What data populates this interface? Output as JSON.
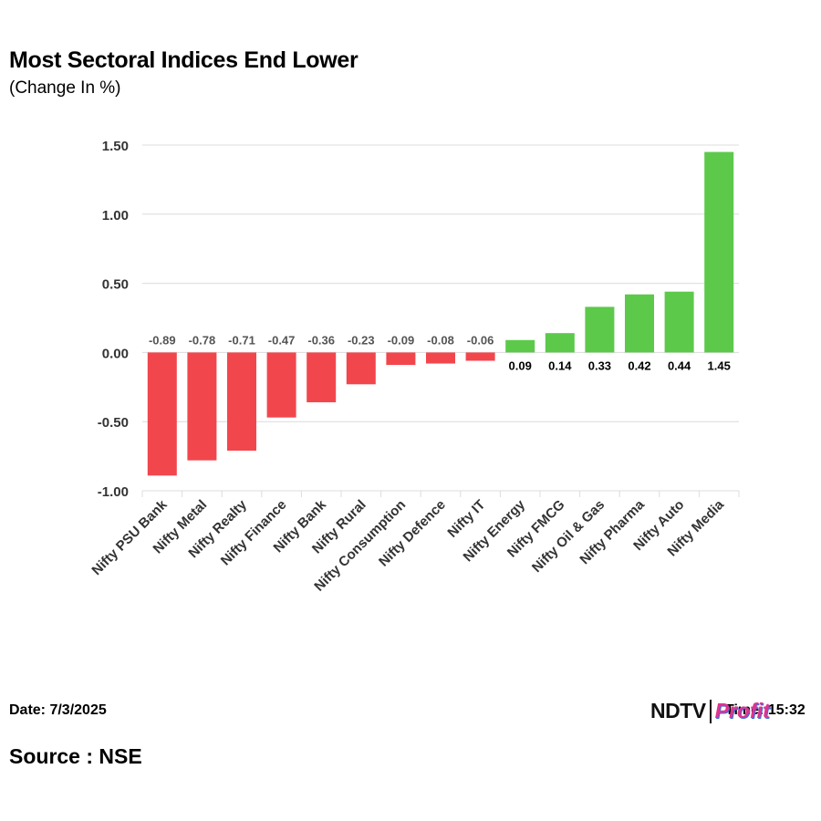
{
  "title": "Most Sectoral Indices End Lower",
  "subtitle": "(Change In %)",
  "footer": {
    "date": "Date: 7/3/2025",
    "source": "Source : NSE",
    "time": "Time: 15:32",
    "logo_left": "NDTV",
    "logo_right": "Profit"
  },
  "colors": {
    "negative": "#f2464d",
    "positive": "#5cc94b",
    "grid": "#dcdcdc",
    "tick_text": "#333333",
    "neg_label": "#555555",
    "pos_label": "#000000"
  },
  "chart_data": {
    "type": "bar",
    "title": "Most Sectoral Indices End Lower",
    "ylabel": "(Change In %)",
    "xlabel": "",
    "ylim": [
      -1.0,
      1.5
    ],
    "yticks": [
      1.5,
      1.0,
      0.5,
      0.0,
      -0.5,
      -1.0
    ],
    "ytick_labels": [
      "1.50",
      "1.00",
      "0.50",
      "0.00",
      "-0.50",
      "-1.00"
    ],
    "grid": true,
    "categories": [
      "Nifty PSU Bank",
      "Nifty Metal",
      "Nifty Realty",
      "Nifty Finance",
      "Nifty Bank",
      "Nifty Rural",
      "Nifty Consumption",
      "Nifty Defence",
      "Nifty IT",
      "Nifty Energy",
      "Nifty FMCG",
      "Nifty Oil & Gas",
      "Nifty Pharma",
      "Nifty Auto",
      "Nifty Media"
    ],
    "values": [
      -0.89,
      -0.78,
      -0.71,
      -0.47,
      -0.36,
      -0.23,
      -0.09,
      -0.08,
      -0.06,
      0.09,
      0.14,
      0.33,
      0.42,
      0.44,
      1.45
    ],
    "value_labels": [
      "-0.89",
      "-0.78",
      "-0.71",
      "-0.47",
      "-0.36",
      "-0.23",
      "-0.09",
      "-0.08",
      "-0.06",
      "0.09",
      "0.14",
      "0.33",
      "0.42",
      "0.44",
      "1.45"
    ]
  }
}
